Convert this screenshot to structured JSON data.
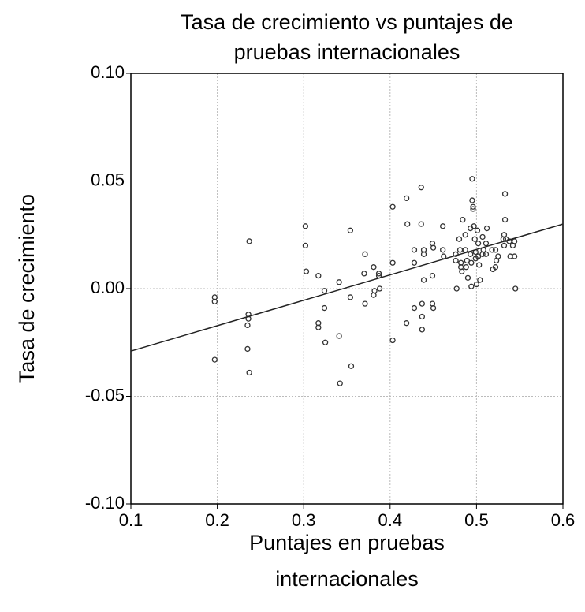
{
  "chart_data": {
    "type": "scatter",
    "title": [
      "Tasa de crecimiento vs puntajes de",
      "pruebas internacionales"
    ],
    "x_label": [
      "Puntajes en pruebas",
      "internacionales"
    ],
    "y_label": "Tasa de crecimiento",
    "xlim": [
      0.1,
      0.6
    ],
    "ylim": [
      -0.1,
      0.1
    ],
    "xticks": [
      0.1,
      0.2,
      0.3,
      0.4,
      0.5,
      0.6
    ],
    "yticks": [
      {
        "value": 0.1,
        "label": "0.10"
      },
      0.05,
      {
        "value": 0,
        "label": "0.00"
      },
      -0.05,
      {
        "value": -0.1,
        "label": "-0.10"
      }
    ],
    "grid": true,
    "color": "#333333",
    "x": [
      0.197,
      0.197,
      0.197,
      0.237,
      0.236,
      0.236,
      0.235,
      0.235,
      0.237,
      0.302,
      0.302,
      0.303,
      0.317,
      0.317,
      0.317,
      0.324,
      0.324,
      0.325,
      0.341,
      0.341,
      0.342,
      0.354,
      0.354,
      0.355,
      0.371,
      0.37,
      0.371,
      0.381,
      0.382,
      0.381,
      0.387,
      0.387,
      0.388,
      0.403,
      0.403,
      0.403,
      0.419,
      0.42,
      0.419,
      0.428,
      0.428,
      0.428,
      0.436,
      0.436,
      0.437,
      0.437,
      0.437,
      0.439,
      0.439,
      0.439,
      0.449,
      0.45,
      0.449,
      0.449,
      0.45,
      0.461,
      0.461,
      0.462,
      0.476,
      0.476,
      0.477,
      0.48,
      0.481,
      0.482,
      0.482,
      0.483,
      0.484,
      0.487,
      0.487,
      0.489,
      0.49,
      0.488,
      0.493,
      0.493,
      0.494,
      0.494,
      0.495,
      0.495,
      0.496,
      0.496,
      0.497,
      0.498,
      0.499,
      0.499,
      0.5,
      0.501,
      0.502,
      0.502,
      0.503,
      0.504,
      0.507,
      0.508,
      0.507,
      0.512,
      0.511,
      0.511,
      0.518,
      0.519,
      0.522,
      0.522,
      0.523,
      0.525,
      0.531,
      0.532,
      0.532,
      0.534,
      0.533,
      0.533,
      0.538,
      0.539,
      0.542,
      0.544,
      0.544,
      0.545
    ],
    "values": [
      -0.004,
      -0.006,
      -0.033,
      0.022,
      -0.012,
      -0.014,
      -0.017,
      -0.028,
      -0.039,
      0.029,
      0.02,
      0.008,
      0.006,
      -0.016,
      -0.018,
      -0.001,
      -0.009,
      -0.025,
      0.003,
      -0.022,
      -0.044,
      0.027,
      -0.004,
      -0.036,
      0.016,
      0.007,
      -0.007,
      0.01,
      -0.001,
      -0.003,
      0.007,
      0.006,
      0,
      0.038,
      0.012,
      -0.024,
      0.042,
      0.03,
      -0.016,
      0.018,
      0.012,
      -0.009,
      0.047,
      0.03,
      -0.007,
      -0.013,
      -0.019,
      0.018,
      0.016,
      0.004,
      0.021,
      0.019,
      0.006,
      -0.007,
      -0.009,
      0.029,
      0.018,
      0.015,
      0.016,
      0.013,
      0,
      0.023,
      0.018,
      0.012,
      0.01,
      0.008,
      0.032,
      0.025,
      0.018,
      0.013,
      0.005,
      0.01,
      0.028,
      0.016,
      0.012,
      0.001,
      0.051,
      0.041,
      0.038,
      0.037,
      0.029,
      0.023,
      0.017,
      0.014,
      0.002,
      0.027,
      0.021,
      0.015,
      0.011,
      0.004,
      0.024,
      0.018,
      0.016,
      0.028,
      0.021,
      0.016,
      0.018,
      0.009,
      0.01,
      0.018,
      0.013,
      0.015,
      0.023,
      0.025,
      0.02,
      0.023,
      0.044,
      0.032,
      0.022,
      0.015,
      0.02,
      0.022,
      0.015,
      0
    ],
    "trend": {
      "x": [
        0.1,
        0.6
      ],
      "values": [
        -0.029,
        0.03
      ]
    }
  }
}
